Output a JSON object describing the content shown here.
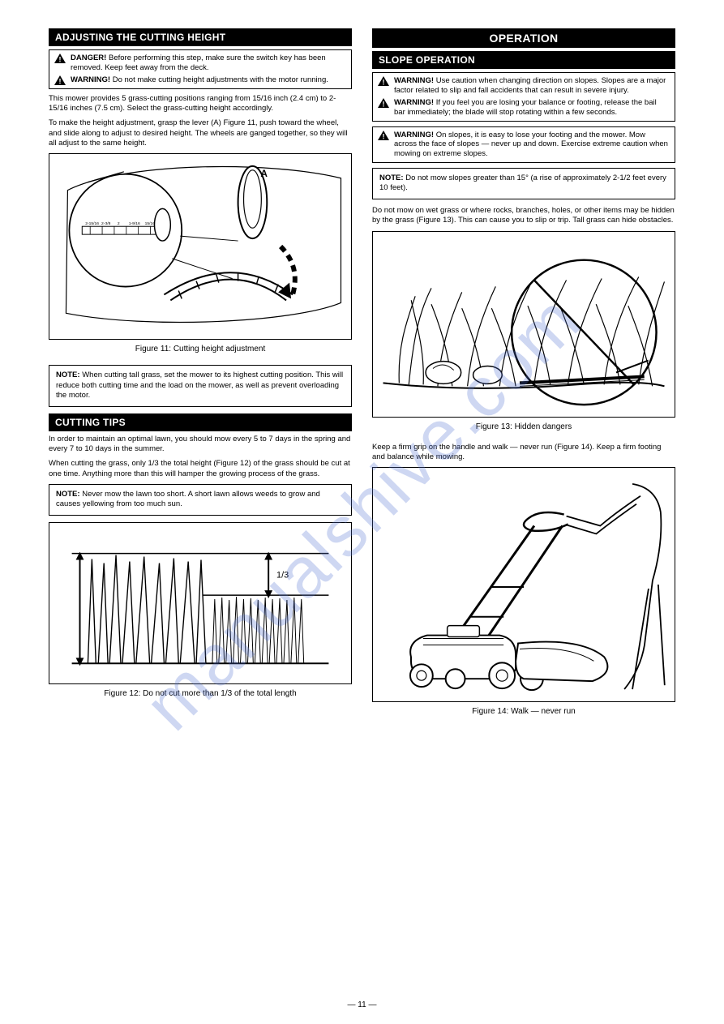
{
  "page_number": "— 11 —",
  "watermark": "manualshive.com",
  "left": {
    "header1": "ADJUSTING THE CUTTING HEIGHT",
    "warn1": {
      "rows": [
        {
          "label": "DANGER!",
          "text": " Before performing this step, make sure the switch key has been removed. Keep feet away from the deck."
        },
        {
          "label": "WARNING!",
          "text": " Do not make cutting height adjustments with the motor running."
        }
      ]
    },
    "para1": "This mower provides 5 grass-cutting positions ranging from 15/16 inch (2.4 cm) to 2-15/16 inches (7.5 cm). Select the grass-cutting height accordingly.",
    "para2": "To make the height adjustment, grasp the lever (A) Figure 11, push toward the wheel, and slide along to adjust to desired height. The wheels are ganged together, so they will all adjust to the same height.",
    "fig11_label": "Figure 11: Cutting height adjustment",
    "note1": "<b>NOTE:</b> When cutting tall grass, set the mower to its highest cutting position. This will reduce both cutting time and the load on the mower, as well as prevent overloading the motor.",
    "header2": "CUTTING TIPS",
    "para3": "In order to maintain an optimal lawn, you should mow every 5 to 7 days in the spring and every 7 to 10 days in the summer.",
    "para4": "When cutting the grass, only 1/3 the total height (Figure 12) of the grass should be cut at one time. Anything more than this will hamper the growing process of the grass.",
    "note2": "<b>NOTE:</b> Never mow the lawn too short. A short lawn allows weeds to grow and causes yellowing from too much sun.",
    "fig12_label": "Figure 12: Do not cut more than 1/3 of the total length"
  },
  "right": {
    "header_line1": "OPERATION",
    "header2": "SLOPE OPERATION",
    "warn1": {
      "rows": [
        {
          "label": "WARNING!",
          "text": " Use caution when changing direction on slopes. Slopes are a major factor related to slip and fall accidents that can result in severe injury."
        },
        {
          "label": "WARNING!",
          "text": " If you feel you are losing your balance or footing, release the bail bar immediately; the blade will stop rotating within a few seconds."
        }
      ]
    },
    "warn2": {
      "rows": [
        {
          "label": "WARNING!",
          "text": " On slopes, it is easy to lose your footing and the mower. Mow across the face of slopes — never up and down. Exercise extreme caution when mowing on extreme slopes."
        }
      ]
    },
    "note1": "<b>NOTE:</b> Do not mow slopes greater than 15° (a rise of approximately 2-1/2 feet every 10 feet).",
    "para1": "Do not mow on wet grass or where rocks, branches, holes, or other items may be hidden by the grass (Figure 13). This can cause you to slip or trip. Tall grass can hide obstacles.",
    "fig13_label": "Figure 13: Hidden dangers",
    "para2": "Keep a firm grip on the handle and walk — never run (Figure 14). Keep a firm footing and balance while mowing.",
    "fig14_label": "Figure 14: Walk — never run"
  },
  "colors": {
    "header_bg": "#000000",
    "header_fg": "#ffffff",
    "border": "#000000",
    "watermark": "rgba(80,110,210,0.28)"
  }
}
